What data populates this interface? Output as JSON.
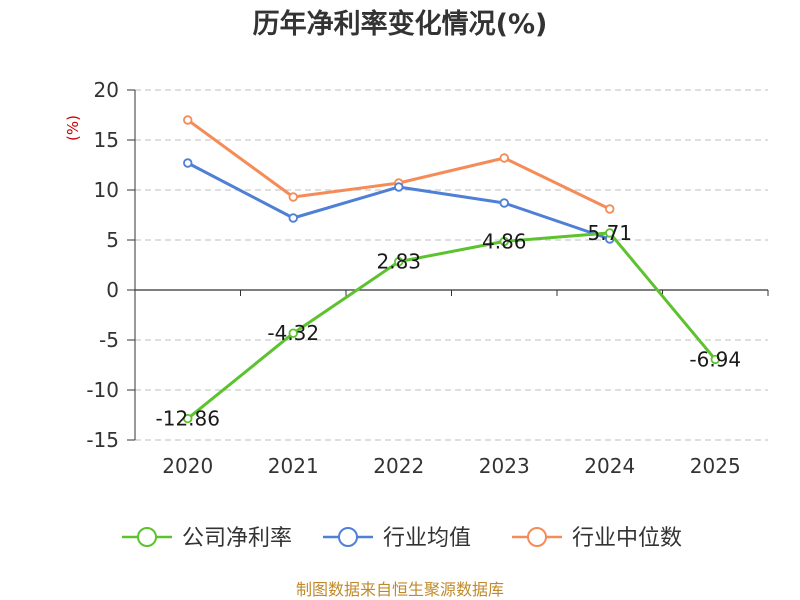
{
  "chart_data": {
    "type": "line",
    "title": "历年净利率变化情况(%)",
    "ylabel": "(%)",
    "xlabel": "",
    "categories": [
      "2020",
      "2021",
      "2022",
      "2023",
      "2024",
      "2025"
    ],
    "yticks": [
      20,
      15,
      10,
      5,
      0,
      -5,
      -10,
      -15
    ],
    "ylim": [
      -15,
      20
    ],
    "grid": true,
    "legend_position": "bottom",
    "series": [
      {
        "name": "公司净利率",
        "color": "#5cc22e",
        "values": [
          -12.86,
          -4.32,
          2.83,
          4.86,
          5.71,
          -6.94
        ],
        "labels": [
          "-12.86",
          "-4.32",
          "2.83",
          "4.86",
          "5.71",
          "-6.94"
        ]
      },
      {
        "name": "行业均值",
        "color": "#4f80d6",
        "values": [
          12.7,
          7.2,
          10.3,
          8.7,
          5.1,
          null
        ]
      },
      {
        "name": "行业中位数",
        "color": "#f58c58",
        "values": [
          17.0,
          9.3,
          10.7,
          13.2,
          8.1,
          null
        ]
      }
    ],
    "source": "制图数据来自恒生聚源数据库",
    "axis_color": "#333333",
    "label_color": "#cc0000",
    "source_color": "#c08a2c"
  }
}
